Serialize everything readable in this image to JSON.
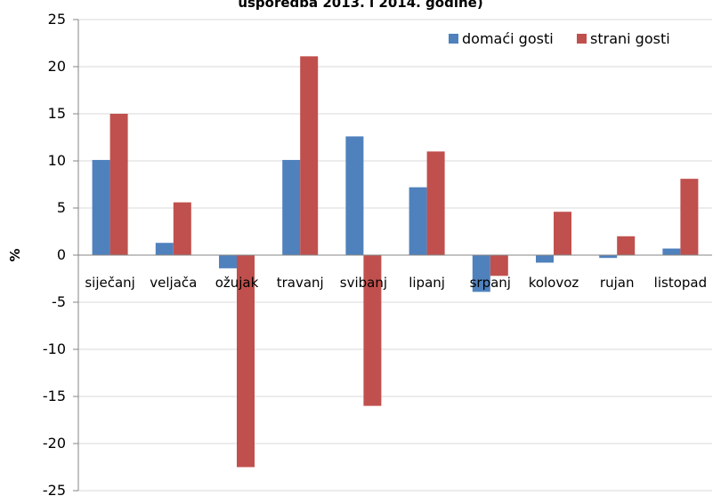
{
  "chart_data": {
    "type": "bar",
    "title": "usporedba 2013. i 2014. godine)",
    "ylabel": "%",
    "xlabel": "",
    "ylim": [
      -25,
      25
    ],
    "yticks": [
      25,
      20,
      15,
      10,
      5,
      0,
      -5,
      -10,
      -15,
      -20,
      -25
    ],
    "grid": true,
    "legend_position": "top-right",
    "categories": [
      "siječanj",
      "veljača",
      "ožujak",
      "travanj",
      "svibanj",
      "lipanj",
      "srpanj",
      "kolovoz",
      "rujan",
      "listopad"
    ],
    "series": [
      {
        "name": "domaći gosti",
        "color": "#4F81BD",
        "values": [
          10.1,
          1.3,
          -1.4,
          10.1,
          12.6,
          7.2,
          -3.9,
          -0.8,
          -0.3,
          0.7
        ]
      },
      {
        "name": "strani gosti",
        "color": "#C0504D",
        "values": [
          15.0,
          5.6,
          -22.5,
          21.1,
          -16.0,
          11.0,
          -2.2,
          4.6,
          2.0,
          8.1
        ]
      }
    ]
  }
}
